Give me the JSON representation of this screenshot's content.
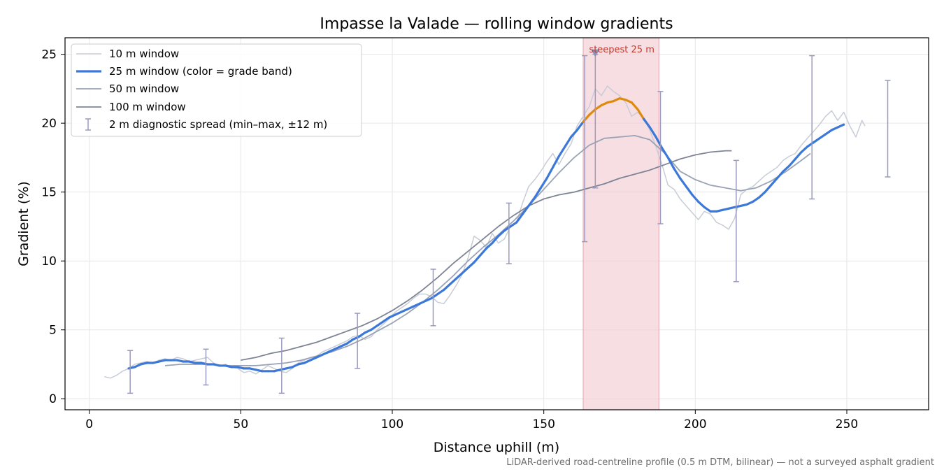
{
  "chart_data": {
    "type": "line",
    "title": "Impasse la Valade — rolling window gradients",
    "xlabel": "Distance uphill (m)",
    "ylabel": "Gradient (%)",
    "xlim": [
      -8,
      277
    ],
    "ylim": [
      -0.8,
      26.2
    ],
    "xticks": [
      0,
      50,
      100,
      150,
      200,
      250
    ],
    "yticks": [
      0,
      5,
      10,
      15,
      20,
      25
    ],
    "grid": true,
    "legend_position": "upper-left",
    "footnote": "LiDAR-derived road-centreline profile (0.5 m DTM, bilinear) — not a surveyed asphalt gradient",
    "colors": {
      "w10": "#c7ccd6",
      "w25": "#3c78d8",
      "w25_steep": "#e08a0b",
      "w50": "#9aa3b5",
      "w100": "#7d8494",
      "errorbar": "#9a9abf",
      "highlight_fill": "#f2cdd3",
      "highlight_edge": "#e3a4ae",
      "annotation": "#c0392b",
      "marker": "#8a8fb3"
    },
    "highlight": {
      "label": "steepest 25 m",
      "x_range": [
        163,
        188
      ],
      "marker": {
        "x": 167,
        "y": 25
      }
    },
    "series": [
      {
        "name": "10 m window",
        "key": "w10",
        "x": [
          5,
          7,
          9,
          11,
          13,
          15,
          17,
          19,
          21,
          23,
          25,
          27,
          29,
          31,
          33,
          35,
          37,
          39,
          41,
          43,
          45,
          47,
          49,
          51,
          53,
          55,
          57,
          59,
          61,
          63,
          65,
          67,
          69,
          71,
          73,
          75,
          77,
          79,
          81,
          83,
          85,
          87,
          89,
          91,
          93,
          95,
          97,
          99,
          101,
          103,
          105,
          107,
          109,
          111,
          113,
          115,
          117,
          119,
          121,
          123,
          125,
          127,
          129,
          131,
          133,
          135,
          137,
          139,
          141,
          143,
          145,
          147,
          149,
          151,
          153,
          155,
          157,
          159,
          161,
          163,
          165,
          167,
          169,
          171,
          173,
          175,
          177,
          179,
          181,
          183,
          185,
          187,
          189,
          191,
          193,
          195,
          197,
          199,
          201,
          203,
          205,
          207,
          209,
          211,
          213,
          215,
          217,
          219,
          221,
          223,
          225,
          227,
          229,
          231,
          233,
          235,
          237,
          239,
          241,
          243,
          245,
          247,
          249,
          251,
          253,
          255,
          256
        ],
        "y": [
          1.6,
          1.5,
          1.7,
          2.0,
          2.2,
          2.5,
          2.6,
          2.7,
          2.6,
          2.8,
          2.9,
          2.8,
          3.0,
          2.9,
          2.7,
          2.8,
          2.9,
          3.0,
          2.6,
          2.4,
          2.5,
          2.3,
          2.2,
          1.9,
          2.0,
          1.8,
          2.1,
          2.4,
          2.2,
          2.0,
          1.9,
          2.2,
          2.6,
          2.8,
          3.0,
          3.1,
          3.4,
          3.6,
          3.8,
          4.0,
          4.2,
          4.5,
          4.6,
          4.3,
          4.5,
          5.0,
          5.4,
          5.8,
          6.3,
          6.6,
          6.9,
          7.3,
          7.6,
          7.6,
          7.4,
          7.0,
          6.9,
          7.5,
          8.2,
          9.0,
          10.2,
          11.8,
          11.5,
          11.0,
          12.0,
          11.3,
          11.6,
          12.5,
          12.8,
          14.2,
          15.4,
          15.9,
          16.5,
          17.2,
          17.8,
          17.0,
          17.8,
          18.5,
          19.8,
          20.5,
          21.2,
          22.5,
          22.0,
          22.7,
          22.3,
          22.0,
          21.5,
          20.5,
          20.8,
          20.3,
          19.5,
          18.3,
          17.0,
          15.5,
          15.2,
          14.5,
          14.0,
          13.5,
          13.0,
          13.6,
          13.4,
          12.8,
          12.6,
          12.3,
          13.1,
          14.8,
          15.2,
          15.4,
          15.8,
          16.2,
          16.5,
          16.8,
          17.3,
          17.6,
          17.8,
          18.4,
          18.9,
          19.4,
          19.9,
          20.5,
          20.9,
          20.2,
          20.8,
          19.8,
          19.0,
          20.2,
          19.8
        ]
      },
      {
        "name": "25 m window (color = grade band)",
        "key": "w25",
        "x": [
          13,
          15,
          17,
          19,
          21,
          23,
          25,
          27,
          29,
          31,
          33,
          35,
          37,
          39,
          41,
          43,
          45,
          47,
          49,
          51,
          53,
          55,
          57,
          59,
          61,
          63,
          65,
          67,
          69,
          71,
          73,
          75,
          77,
          79,
          81,
          83,
          85,
          87,
          89,
          91,
          93,
          95,
          97,
          99,
          101,
          103,
          105,
          107,
          109,
          111,
          113,
          115,
          117,
          119,
          121,
          123,
          125,
          127,
          129,
          131,
          133,
          135,
          137,
          139,
          141,
          143,
          145,
          147,
          149,
          151,
          153,
          155,
          157,
          159,
          161,
          163,
          165,
          167,
          169,
          171,
          173,
          175,
          177,
          179,
          181,
          183,
          185,
          187,
          189,
          191,
          193,
          195,
          197,
          199,
          201,
          203,
          205,
          207,
          209,
          211,
          213,
          215,
          217,
          219,
          221,
          223,
          225,
          227,
          229,
          231,
          233,
          235,
          237,
          239,
          241,
          243,
          245,
          247,
          249
        ],
        "y": [
          2.2,
          2.3,
          2.5,
          2.6,
          2.6,
          2.7,
          2.8,
          2.8,
          2.8,
          2.7,
          2.7,
          2.6,
          2.6,
          2.5,
          2.5,
          2.4,
          2.4,
          2.3,
          2.3,
          2.2,
          2.2,
          2.1,
          2.0,
          2.0,
          2.0,
          2.1,
          2.2,
          2.3,
          2.5,
          2.6,
          2.8,
          3.0,
          3.2,
          3.4,
          3.6,
          3.8,
          4.0,
          4.3,
          4.5,
          4.8,
          5.0,
          5.3,
          5.6,
          5.9,
          6.1,
          6.3,
          6.5,
          6.7,
          6.9,
          7.1,
          7.3,
          7.6,
          7.9,
          8.3,
          8.7,
          9.1,
          9.5,
          9.9,
          10.4,
          10.9,
          11.3,
          11.8,
          12.2,
          12.5,
          12.8,
          13.4,
          14.0,
          14.6,
          15.3,
          16.0,
          16.8,
          17.6,
          18.3,
          19.0,
          19.5,
          20.1,
          20.6,
          21.0,
          21.3,
          21.5,
          21.6,
          21.8,
          21.7,
          21.5,
          21.0,
          20.3,
          19.7,
          19.0,
          18.2,
          17.5,
          16.7,
          16.0,
          15.4,
          14.8,
          14.3,
          13.9,
          13.6,
          13.6,
          13.7,
          13.8,
          13.9,
          14.0,
          14.1,
          14.3,
          14.6,
          15.0,
          15.5,
          16.0,
          16.5,
          16.9,
          17.4,
          17.9,
          18.3,
          18.6,
          18.9,
          19.2,
          19.5,
          19.7,
          19.9
        ]
      },
      {
        "name": "50 m window",
        "key": "w50",
        "x": [
          25,
          30,
          35,
          40,
          45,
          50,
          55,
          60,
          65,
          70,
          75,
          80,
          85,
          90,
          95,
          100,
          105,
          110,
          115,
          120,
          125,
          130,
          135,
          140,
          145,
          150,
          155,
          160,
          165,
          170,
          175,
          180,
          185,
          190,
          195,
          200,
          205,
          210,
          215,
          220,
          225,
          230,
          235,
          238
        ],
        "y": [
          2.4,
          2.5,
          2.5,
          2.5,
          2.4,
          2.4,
          2.4,
          2.5,
          2.6,
          2.8,
          3.1,
          3.4,
          3.8,
          4.3,
          4.9,
          5.5,
          6.2,
          7.0,
          7.9,
          8.9,
          10.0,
          11.0,
          11.9,
          12.9,
          14.0,
          15.2,
          16.4,
          17.5,
          18.4,
          18.9,
          19.0,
          19.1,
          18.8,
          17.8,
          16.5,
          15.9,
          15.5,
          15.3,
          15.1,
          15.3,
          15.8,
          16.5,
          17.3,
          17.8
        ]
      },
      {
        "name": "100 m window",
        "key": "w100",
        "x": [
          50,
          55,
          60,
          65,
          70,
          75,
          80,
          85,
          90,
          95,
          100,
          105,
          110,
          115,
          120,
          125,
          130,
          135,
          140,
          145,
          150,
          155,
          160,
          165,
          170,
          175,
          180,
          185,
          190,
          195,
          200,
          205,
          210,
          212
        ],
        "y": [
          2.8,
          3.0,
          3.3,
          3.5,
          3.8,
          4.1,
          4.5,
          4.9,
          5.3,
          5.8,
          6.4,
          7.1,
          7.9,
          8.8,
          9.8,
          10.7,
          11.6,
          12.5,
          13.3,
          14.0,
          14.5,
          14.8,
          15.0,
          15.3,
          15.6,
          16.0,
          16.3,
          16.6,
          17.0,
          17.4,
          17.7,
          17.9,
          18.0,
          18.0
        ]
      }
    ],
    "errorbars": {
      "name": "2 m diagnostic spread (min–max, ±12 m)",
      "x": [
        13.5,
        38.5,
        63.5,
        88.5,
        113.5,
        138.5,
        163.5,
        167,
        188.5,
        213.5,
        238.5,
        263.5
      ],
      "low": [
        0.4,
        1.0,
        0.4,
        2.2,
        5.3,
        9.8,
        11.4,
        15.3,
        12.7,
        8.5,
        14.5,
        16.1
      ],
      "high": [
        3.5,
        3.6,
        4.4,
        6.2,
        9.4,
        14.2,
        24.9,
        25.0,
        22.3,
        17.3,
        24.9,
        23.1
      ]
    }
  }
}
